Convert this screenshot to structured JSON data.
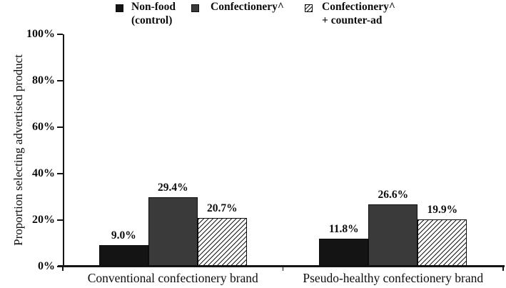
{
  "figure": {
    "background": "#ffffff",
    "text_color": "#0d0d0d"
  },
  "chart_data": {
    "type": "bar",
    "title": "",
    "ylabel": "Proportion selecting advertised product",
    "xlabel": "",
    "ylim": [
      0,
      100
    ],
    "ytick_values": [
      0,
      20,
      40,
      60,
      80,
      100
    ],
    "ytick_labels": [
      "0%",
      "20%",
      "40%",
      "60%",
      "80%",
      "100%"
    ],
    "categories": [
      "Conventional confectionery brand",
      "Pseudo-healthy confectionery brand"
    ],
    "series": [
      {
        "name": "Non-food (control)",
        "style": "solid-black",
        "color": "#141414",
        "values": [
          9.0,
          11.8
        ],
        "value_labels": [
          "9.0%",
          "11.8%"
        ]
      },
      {
        "name": "Confectionery^",
        "style": "solid-gray",
        "color": "#3a3a3a",
        "values": [
          29.4,
          26.6
        ],
        "value_labels": [
          "29.4%",
          "26.6%"
        ]
      },
      {
        "name": "Confectionery^ + counter-ad",
        "style": "hatched",
        "color": "#ffffff",
        "values": [
          20.7,
          19.9
        ],
        "value_labels": [
          "20.7%",
          "19.9%"
        ]
      }
    ],
    "legend_position": "top",
    "grid": false
  },
  "legend": {
    "items": [
      {
        "lines": [
          "Non-food",
          "(control)"
        ],
        "style": "solid-black"
      },
      {
        "lines": [
          "Confectionery^"
        ],
        "style": "solid-gray"
      },
      {
        "lines": [
          "Confectionery^",
          "+ counter-ad"
        ],
        "style": "hatched"
      }
    ]
  }
}
